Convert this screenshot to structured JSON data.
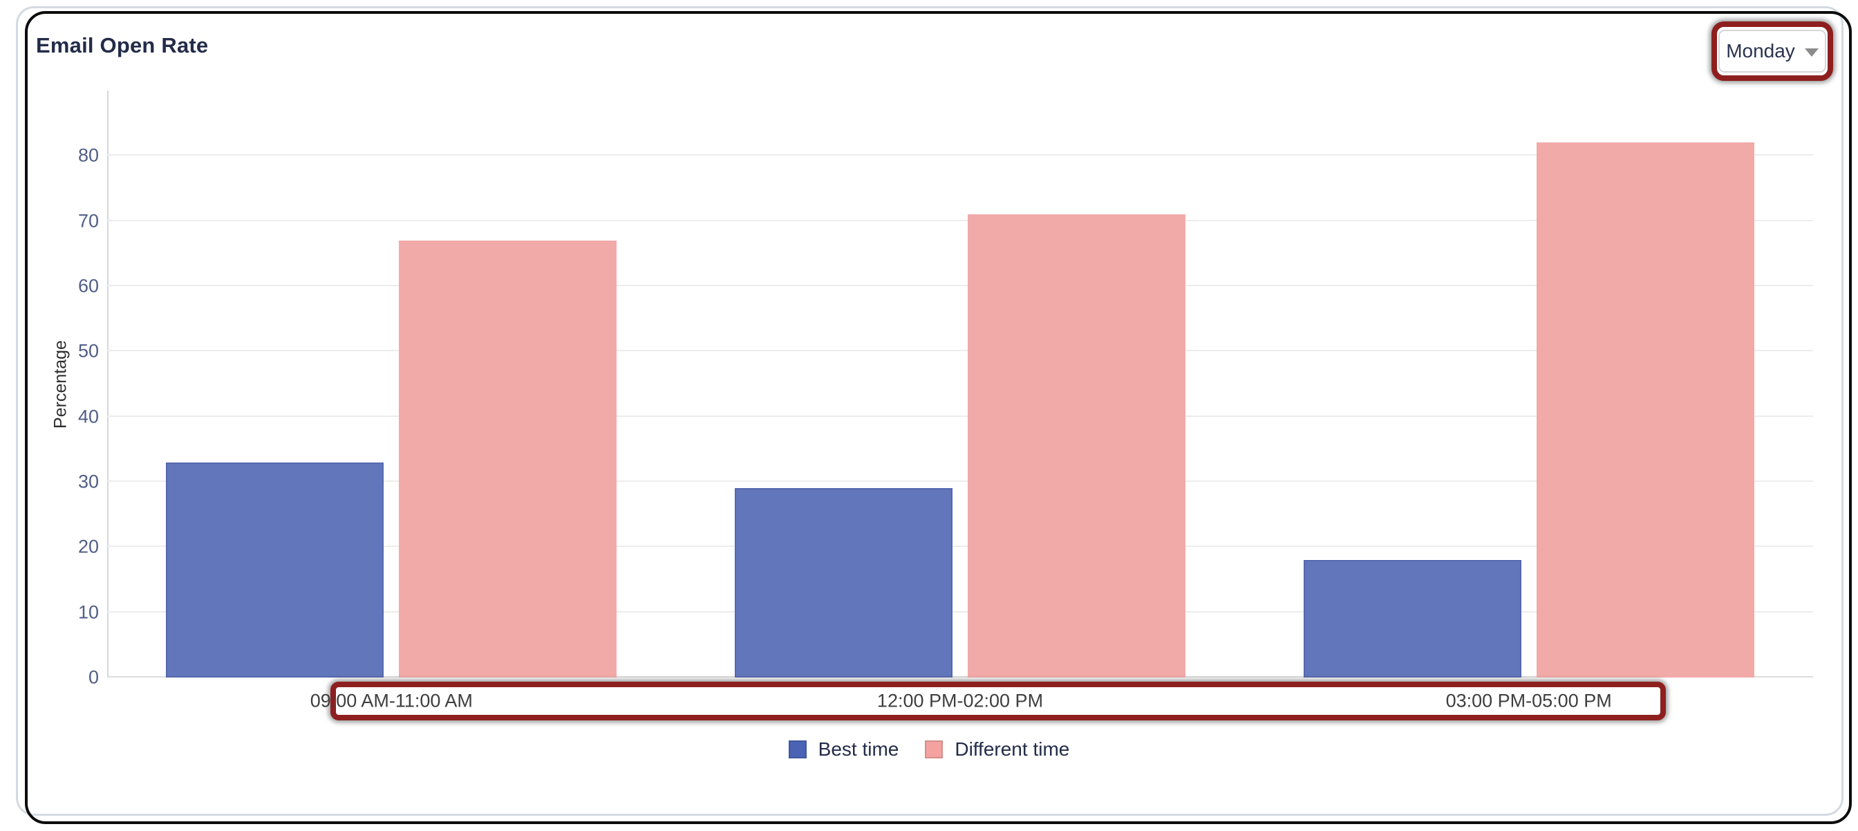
{
  "card": {
    "title": "Email Open Rate"
  },
  "dropdown": {
    "value": "Monday",
    "icon": "chevron-down"
  },
  "chart_data": {
    "type": "bar",
    "title": "Email Open Rate",
    "categories": [
      "09:00 AM-11:00 AM",
      "12:00 PM-02:00 PM",
      "03:00 PM-05:00 PM"
    ],
    "series": [
      {
        "name": "Best time",
        "color": "#6277bb",
        "legend_color": "#4a63b4",
        "values": [
          33,
          29,
          18
        ]
      },
      {
        "name": "Different time",
        "color": "#f2aaa9",
        "legend_color": "#f3a29f",
        "values": [
          67,
          71,
          82
        ]
      }
    ],
    "xlabel": "",
    "ylabel": "Percentage",
    "ylim": [
      0,
      90
    ],
    "yticks": [
      0,
      10,
      20,
      30,
      40,
      50,
      60,
      70,
      80
    ],
    "grid": true,
    "legend_position": "bottom"
  },
  "annotations": {
    "highlight_color": "#8e1f1f",
    "highlighted_elements": [
      "day-dropdown",
      "x-axis-labels"
    ]
  }
}
